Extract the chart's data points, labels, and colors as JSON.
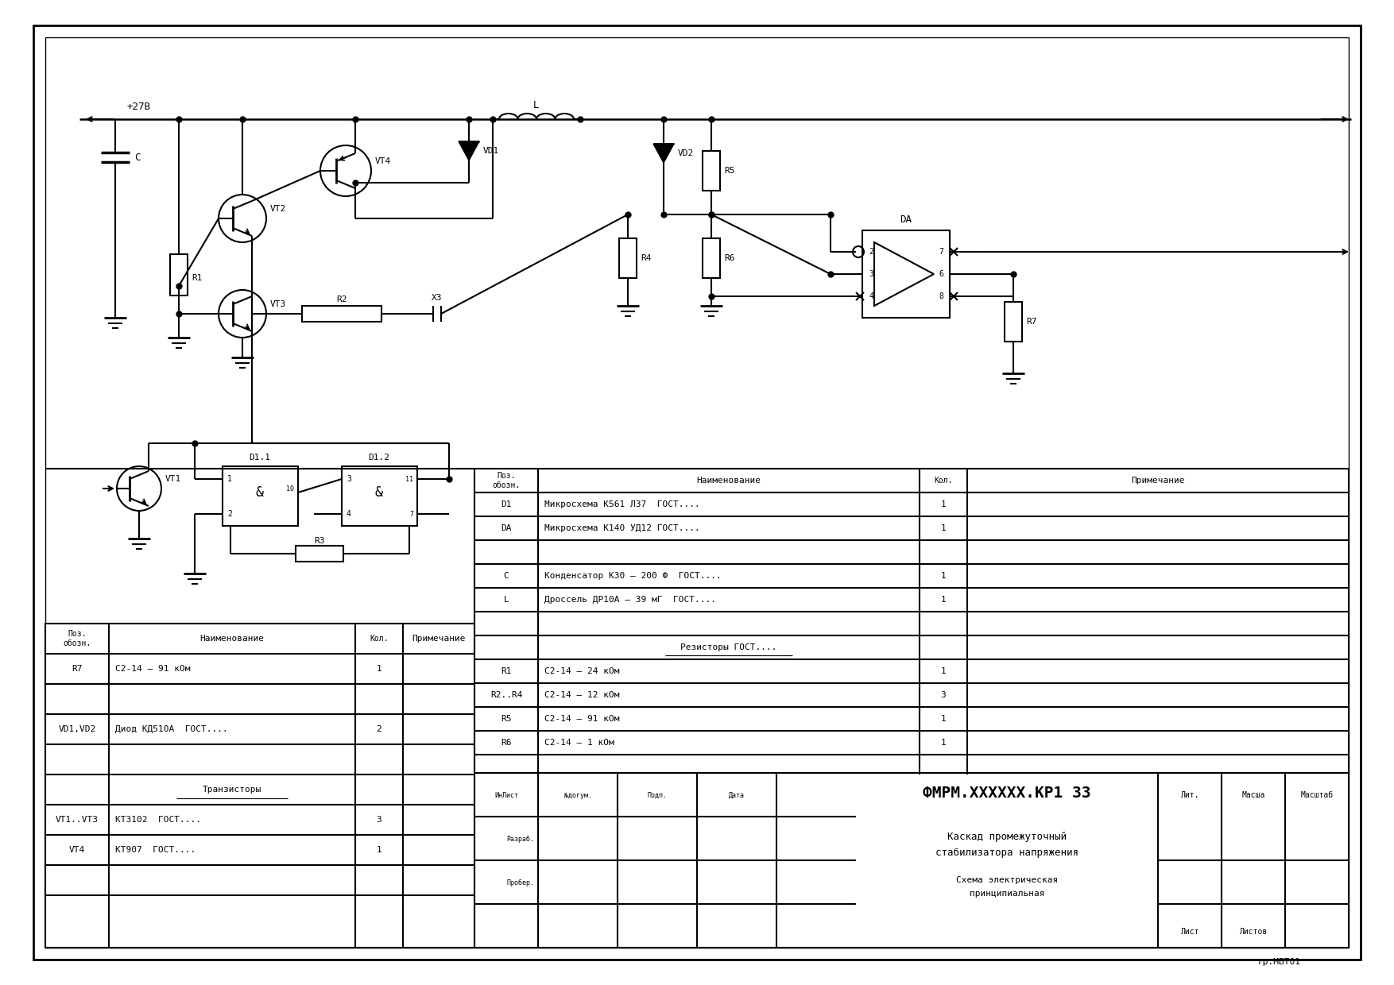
{
  "bg": "#ffffff",
  "lc": "#000000",
  "lw": 1.5,
  "fw": 17.54,
  "fh": 12.4,
  "dpi": 100,
  "title_main": "ФМРМ.XXXXXX.КР1 33",
  "sub1": "Каскад промежуточный",
  "sub2": "стабилизатора напряжения",
  "sch1": "Схема электрическая",
  "sch2": "принципиальная",
  "grp": "гр.МБТ01",
  "tb_rows_left": [
    "Ин Лист",
    "№ догум.",
    "Подп.",
    "Дата"
  ],
  "tb_label_razr": "Разраб.",
  "tb_label_prob": "Пробер.",
  "tb_right_labels": [
    "Лит.",
    "Масша",
    "Масштаб"
  ],
  "tb_right_bot": [
    "Лист",
    "Листов"
  ],
  "bom_hdr": [
    "Поз.\nобозн.",
    "Наименование",
    "Кол.",
    "Примечание"
  ],
  "bom_r": [
    [
      "D1",
      "Микросхема К561 ЛЗ7  ГОСТ....",
      "1",
      ""
    ],
    [
      "DA",
      "Микросхема К140 УД12 ГОСТ....",
      "1",
      ""
    ],
    [
      "",
      "",
      "",
      ""
    ],
    [
      "C",
      "Конденсатор К30 – 200 Ф  ГОСТ....",
      "1",
      ""
    ],
    [
      "L",
      "Дроссель ДР10А – 39 мГ  ГОСТ....",
      "1",
      ""
    ],
    [
      "",
      "",
      "",
      ""
    ],
    [
      "",
      "Резисторы ГОСТ....",
      "",
      ""
    ],
    [
      "R1",
      "С2-14 – 24 кОм",
      "1",
      ""
    ],
    [
      "R2..R4",
      "С2-14 – 12 кОм",
      "3",
      ""
    ],
    [
      "R5",
      "С2-14 – 91 кОм",
      "1",
      ""
    ],
    [
      "R6",
      "С2-14 – 1 кОм",
      "1",
      ""
    ]
  ],
  "bom_l": [
    [
      "R7",
      "С2-14 – 91 кОм",
      "1",
      ""
    ],
    [
      "",
      "",
      "",
      ""
    ],
    [
      "VD1,VD2",
      "Диод КД510А  ГОСТ....",
      "2",
      ""
    ],
    [
      "",
      "",
      "",
      ""
    ],
    [
      "",
      "Транзисторы",
      "",
      ""
    ],
    [
      "VT1..VT3",
      "КТ3102  ГОСТ....",
      "3",
      ""
    ],
    [
      "VT4",
      "КТ907  ГОСТ....",
      "1",
      ""
    ],
    [
      "",
      "",
      "",
      ""
    ]
  ]
}
